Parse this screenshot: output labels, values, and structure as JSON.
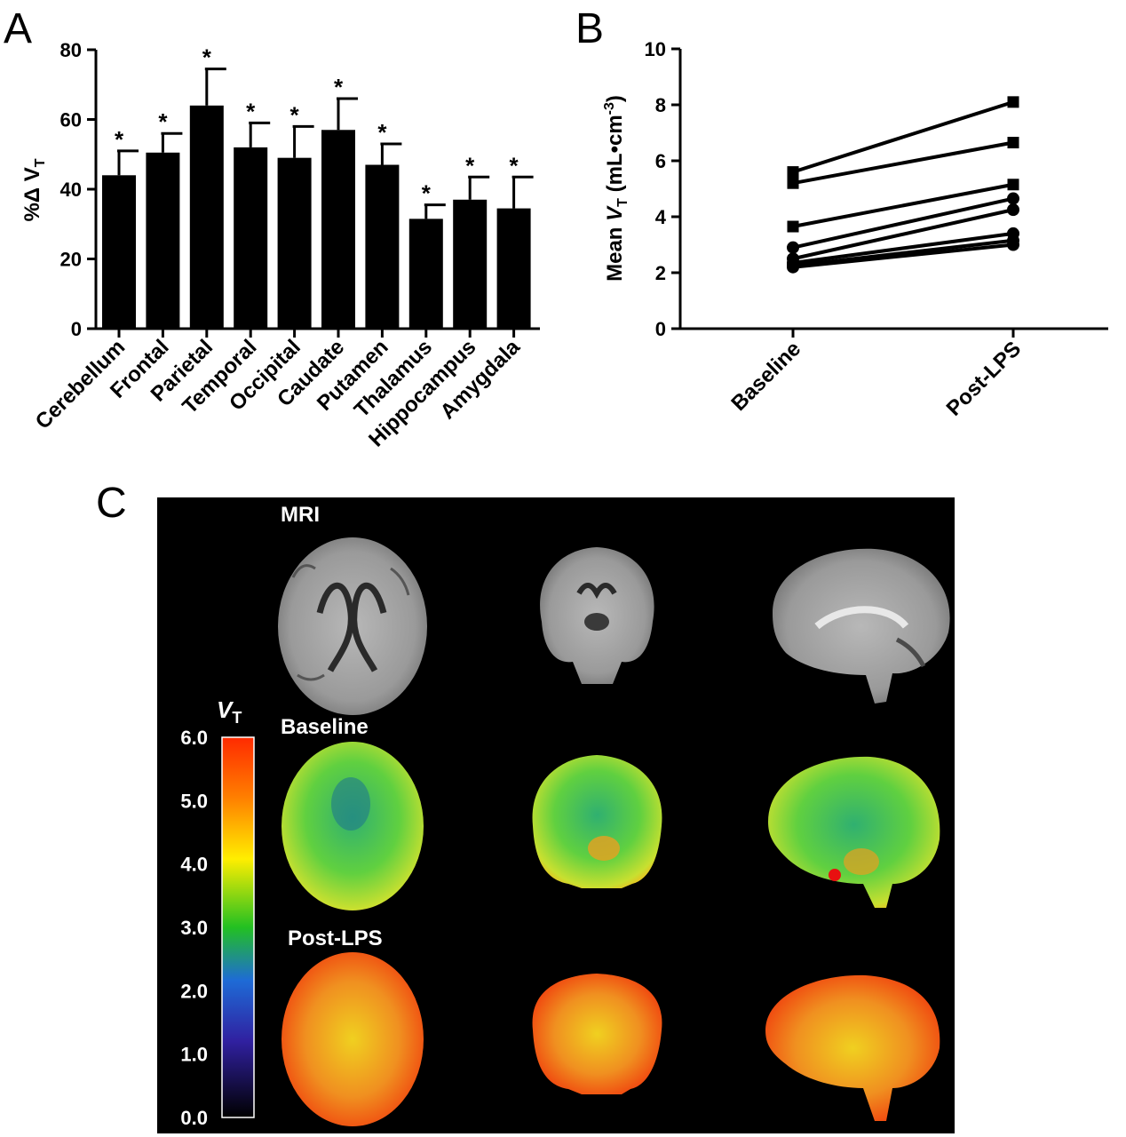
{
  "panels": {
    "a_label": "A",
    "b_label": "B",
    "c_label": "C"
  },
  "chart_data": [
    {
      "type": "bar",
      "panel": "A",
      "categories": [
        "Cerebellum",
        "Frontal",
        "Parietal",
        "Temporal",
        "Occipital",
        "Caudate",
        "Putamen",
        "Thalamus",
        "Hippocampus",
        "Amygdala"
      ],
      "values": [
        44,
        50.5,
        64,
        52,
        49,
        57,
        47,
        31.5,
        37,
        34.5
      ],
      "errors": [
        7,
        5.5,
        10.5,
        7,
        9,
        9,
        6,
        4,
        6.5,
        9
      ],
      "annotations": [
        "*",
        "*",
        "*",
        "*",
        "*",
        "*",
        "*",
        "*",
        "*",
        "*"
      ],
      "ylabel_prefix": "%Δ ",
      "ylabel_main": "V",
      "ylabel_sub": "T",
      "ylim": [
        0,
        80
      ],
      "yticks": [
        0,
        20,
        40,
        60,
        80
      ],
      "bar_color": "#000000"
    },
    {
      "type": "line",
      "panel": "B",
      "categories": [
        "Baseline",
        "Post-LPS"
      ],
      "ylabel_prefix": "Mean ",
      "ylabel_var": "V",
      "ylabel_sub": "T",
      "ylabel_unit": " (mL•cm",
      "ylabel_sup": "-3",
      "ylabel_close": ")",
      "ylim": [
        0,
        10
      ],
      "yticks": [
        0,
        2,
        4,
        6,
        8,
        10
      ],
      "series": [
        {
          "marker": "square",
          "values": [
            5.6,
            8.1
          ]
        },
        {
          "marker": "square",
          "values": [
            5.2,
            6.65
          ]
        },
        {
          "marker": "square",
          "values": [
            3.65,
            5.15
          ]
        },
        {
          "marker": "circle",
          "values": [
            2.9,
            4.65
          ]
        },
        {
          "marker": "circle",
          "values": [
            2.5,
            4.25
          ]
        },
        {
          "marker": "circle",
          "values": [
            2.35,
            3.4
          ]
        },
        {
          "marker": "circle",
          "values": [
            2.25,
            3.15
          ]
        },
        {
          "marker": "circle",
          "values": [
            2.2,
            3.0
          ]
        }
      ]
    }
  ],
  "panel_c": {
    "row_labels": [
      "MRI",
      "Baseline",
      "Post-LPS"
    ],
    "colorbar": {
      "label_var": "V",
      "label_sub": "T",
      "ticks": [
        "6.0",
        "5.0",
        "4.0",
        "3.0",
        "2.0",
        "1.0",
        "0.0"
      ],
      "colors": [
        "#ff2a00",
        "#ff8000",
        "#ffff00",
        "#20c020",
        "#1e6bd6",
        "#2020a0",
        "#000000"
      ]
    }
  }
}
